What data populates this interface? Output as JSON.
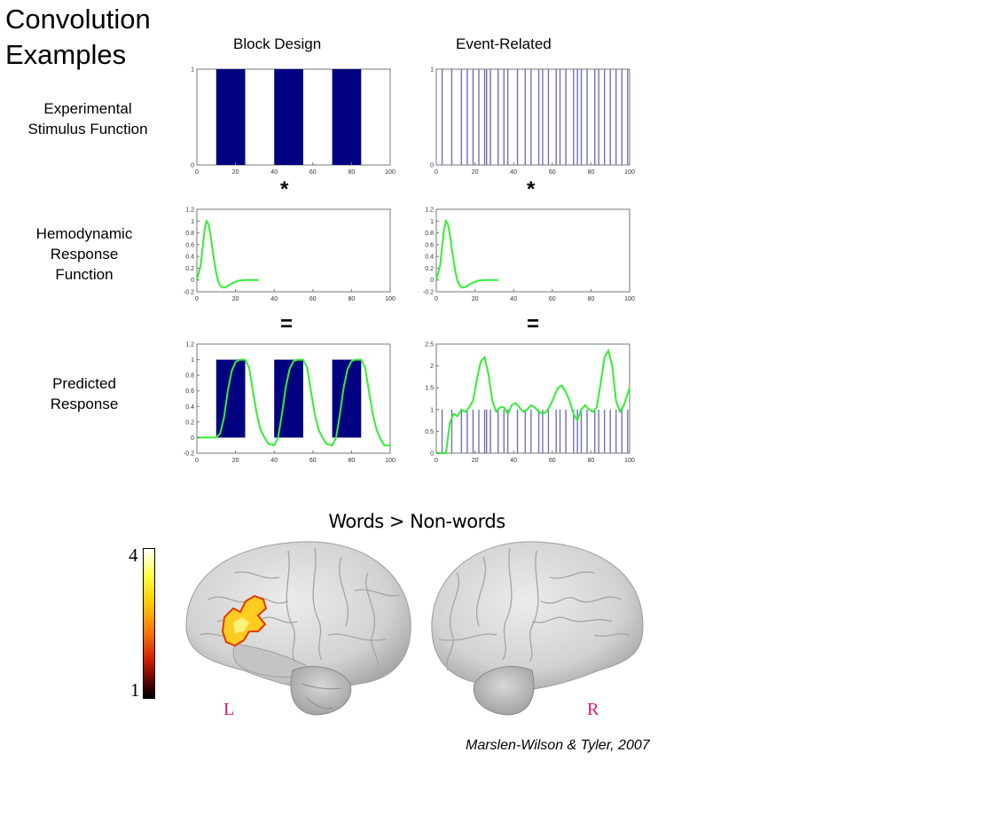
{
  "title": "Convolution\nExamples",
  "columns": {
    "block": "Block Design",
    "event": "Event-Related"
  },
  "rows": {
    "stimulus": "Experimental\nStimulus Function",
    "hrf": "Hemodynamic\nResponse\nFunction",
    "predicted": "Predicted\nResponse"
  },
  "operators": {
    "convolve": "*",
    "equals": "="
  },
  "brain_figure": {
    "title": "Words > Non-words",
    "scale_max": "4",
    "scale_min": "1",
    "left_label": "L",
    "right_label": "R",
    "activation_color": "#ffcc22"
  },
  "citation": "Marslen-Wilson & Tyler, 2007",
  "colors": {
    "bar": "#000080",
    "hrf": "#33ee33",
    "spike": "#7070c0"
  },
  "chart_data": [
    {
      "id": "block-stimulus",
      "type": "bar",
      "blocks": [
        [
          10,
          25
        ],
        [
          40,
          55
        ],
        [
          70,
          85
        ]
      ],
      "block_value": 1,
      "xlim": [
        0,
        100
      ],
      "ylim": [
        0,
        1
      ],
      "xticks": [
        0,
        20,
        40,
        60,
        80,
        100
      ],
      "yticks": [
        0,
        1
      ]
    },
    {
      "id": "event-stimulus",
      "type": "line",
      "events": [
        3,
        8,
        13,
        16,
        19,
        22,
        25,
        26,
        28,
        32,
        35,
        37,
        42,
        46,
        49,
        53,
        55,
        58,
        62,
        64,
        67,
        71,
        73,
        75,
        78,
        82,
        84,
        87,
        90,
        93,
        96,
        99
      ],
      "event_value": 1,
      "xlim": [
        0,
        100
      ],
      "ylim": [
        0,
        1
      ],
      "xticks": [
        0,
        20,
        40,
        60,
        80,
        100
      ],
      "yticks": [
        0,
        1
      ]
    },
    {
      "id": "block-hrf",
      "type": "line",
      "x": [
        0,
        2,
        3,
        4,
        5,
        6,
        7,
        8,
        9,
        10,
        11,
        12,
        13,
        14,
        15,
        16,
        18,
        20,
        22,
        25,
        28,
        30,
        32
      ],
      "y": [
        0,
        0.25,
        0.55,
        0.85,
        1.0,
        0.95,
        0.78,
        0.55,
        0.32,
        0.12,
        -0.02,
        -0.09,
        -0.12,
        -0.13,
        -0.12,
        -0.1,
        -0.06,
        -0.03,
        -0.01,
        0,
        0,
        0,
        0
      ],
      "xlim": [
        0,
        100
      ],
      "ylim": [
        -0.2,
        1.2
      ],
      "xticks": [
        0,
        20,
        40,
        60,
        80,
        100
      ],
      "yticks": [
        -0.2,
        0,
        0.2,
        0.4,
        0.6,
        0.8,
        1,
        1.2
      ]
    },
    {
      "id": "event-hrf",
      "type": "line",
      "x": [
        0,
        2,
        3,
        4,
        5,
        6,
        7,
        8,
        9,
        10,
        11,
        12,
        13,
        14,
        15,
        16,
        18,
        20,
        22,
        25,
        28,
        30,
        32
      ],
      "y": [
        0,
        0.25,
        0.55,
        0.85,
        1.0,
        0.95,
        0.78,
        0.55,
        0.32,
        0.12,
        -0.02,
        -0.09,
        -0.12,
        -0.13,
        -0.12,
        -0.1,
        -0.06,
        -0.03,
        -0.01,
        0,
        0,
        0,
        0
      ],
      "xlim": [
        0,
        100
      ],
      "ylim": [
        -0.2,
        1.2
      ],
      "xticks": [
        0,
        20,
        40,
        60,
        80,
        100
      ],
      "yticks": [
        -0.2,
        0,
        0.2,
        0.4,
        0.6,
        0.8,
        1,
        1.2
      ]
    },
    {
      "id": "block-predicted",
      "type": "line",
      "blocks": [
        [
          10,
          25
        ],
        [
          40,
          55
        ],
        [
          70,
          85
        ]
      ],
      "block_value": 1,
      "x": [
        0,
        10,
        12,
        14,
        16,
        18,
        20,
        22,
        25,
        27,
        29,
        31,
        33,
        35,
        37,
        40,
        42,
        44,
        46,
        48,
        50,
        52,
        55,
        57,
        59,
        61,
        63,
        65,
        67,
        70,
        72,
        74,
        76,
        78,
        80,
        82,
        85,
        87,
        89,
        91,
        93,
        95,
        97,
        100
      ],
      "y": [
        0,
        0,
        0.05,
        0.25,
        0.6,
        0.85,
        0.97,
        1.0,
        1.0,
        0.9,
        0.6,
        0.3,
        0.1,
        0,
        -0.08,
        -0.1,
        0,
        0.3,
        0.65,
        0.88,
        0.98,
        1.0,
        1.0,
        0.9,
        0.6,
        0.3,
        0.1,
        0,
        -0.08,
        -0.1,
        0,
        0.3,
        0.65,
        0.88,
        0.98,
        1.0,
        1.0,
        0.9,
        0.6,
        0.3,
        0.1,
        -0.02,
        -0.1,
        -0.1
      ],
      "xlim": [
        0,
        100
      ],
      "ylim": [
        -0.2,
        1.2
      ],
      "xticks": [
        0,
        20,
        40,
        60,
        80,
        100
      ],
      "yticks": [
        -0.2,
        0,
        0.2,
        0.4,
        0.6,
        0.8,
        1,
        1.2
      ]
    },
    {
      "id": "event-predicted",
      "type": "line",
      "events": [
        3,
        8,
        13,
        16,
        19,
        22,
        25,
        26,
        28,
        32,
        35,
        37,
        42,
        46,
        49,
        53,
        55,
        58,
        62,
        64,
        67,
        71,
        73,
        75,
        78,
        82,
        84,
        87,
        90,
        93,
        96,
        99
      ],
      "event_value": 1,
      "x": [
        0,
        5,
        7,
        9,
        11,
        13,
        15,
        17,
        19,
        21,
        23,
        25,
        27,
        29,
        31,
        33,
        35,
        37,
        39,
        41,
        43,
        45,
        47,
        49,
        51,
        53,
        55,
        57,
        59,
        61,
        63,
        65,
        67,
        69,
        71,
        73,
        75,
        77,
        79,
        81,
        83,
        85,
        87,
        89,
        91,
        93,
        95,
        97,
        100
      ],
      "y": [
        0,
        0,
        0.7,
        0.9,
        0.85,
        1.0,
        0.95,
        1.05,
        1.2,
        1.7,
        2.1,
        2.2,
        1.8,
        1.2,
        0.95,
        1.05,
        1.05,
        0.9,
        1.1,
        1.15,
        1.05,
        0.95,
        1.0,
        1.1,
        1.05,
        0.95,
        0.9,
        0.95,
        1.1,
        1.3,
        1.5,
        1.55,
        1.4,
        1.2,
        0.9,
        0.75,
        1.0,
        1.1,
        1.0,
        0.95,
        1.05,
        1.6,
        2.2,
        2.35,
        2.0,
        1.2,
        0.95,
        1.1,
        1.5
      ],
      "xlim": [
        0,
        100
      ],
      "ylim": [
        0,
        2.5
      ],
      "xticks": [
        0,
        20,
        40,
        60,
        80,
        100
      ],
      "yticks": [
        0,
        0.5,
        1,
        1.5,
        2,
        2.5
      ]
    }
  ]
}
